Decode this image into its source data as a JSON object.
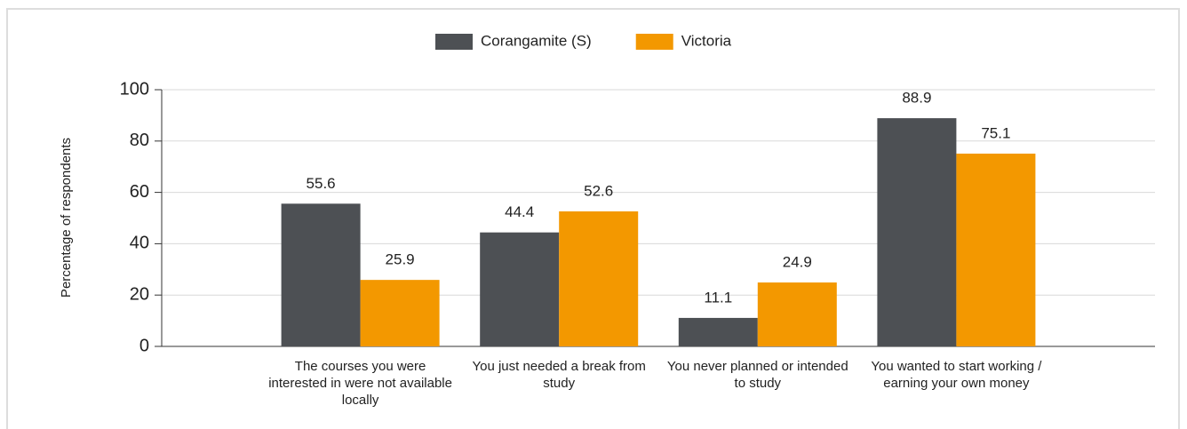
{
  "chart_data": {
    "type": "bar",
    "y_label": "Percentage of respondents",
    "categories": [
      "The courses you were interested in were not available locally",
      "You just needed a break from study",
      "You never planned or intended to study",
      "You wanted to start working / earning your own money"
    ],
    "series": [
      {
        "name": "Corangamite (S)",
        "color": "#4d5054",
        "values": [
          55.6,
          44.4,
          11.1,
          88.9
        ]
      },
      {
        "name": "Victoria",
        "color": "#f39800",
        "values": [
          25.9,
          52.6,
          24.9,
          75.1
        ]
      }
    ],
    "ylim": [
      0,
      100
    ],
    "yticks": [
      0,
      20,
      40,
      60,
      80,
      100
    ],
    "grid": true,
    "legend": "top"
  }
}
